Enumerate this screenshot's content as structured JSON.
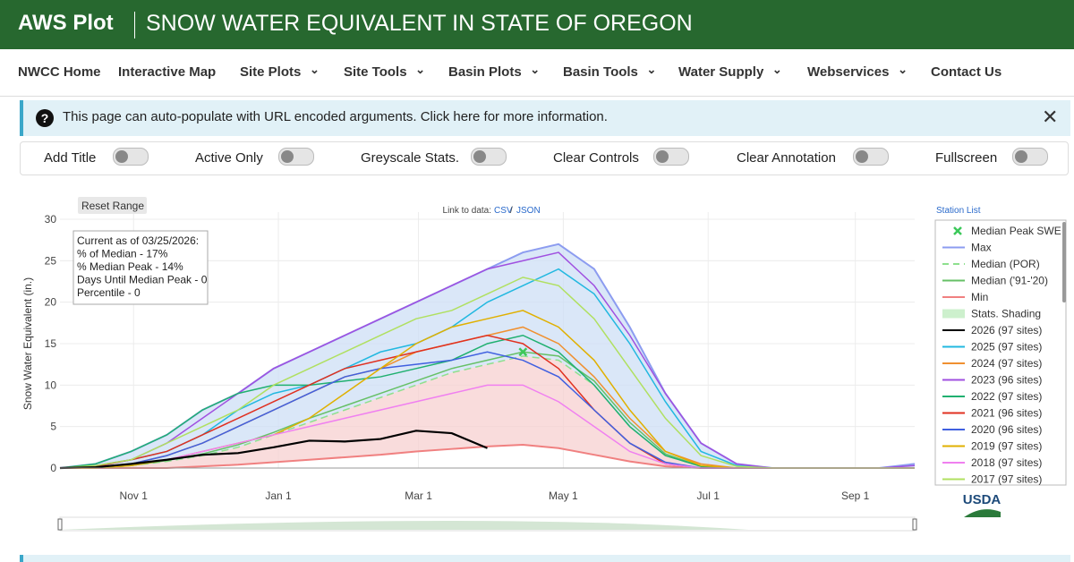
{
  "header": {
    "brand": "AWS Plot",
    "title": "SNOW WATER EQUIVALENT IN STATE OF OREGON"
  },
  "nav": [
    {
      "label": "NWCC Home",
      "dropdown": false
    },
    {
      "label": "Interactive Map",
      "dropdown": false
    },
    {
      "label": "Site Plots",
      "dropdown": true
    },
    {
      "label": "Site Tools",
      "dropdown": true
    },
    {
      "label": "Basin Plots",
      "dropdown": true
    },
    {
      "label": "Basin Tools",
      "dropdown": true
    },
    {
      "label": "Water Supply",
      "dropdown": true
    },
    {
      "label": "Webservices",
      "dropdown": true
    },
    {
      "label": "Contact Us",
      "dropdown": false
    }
  ],
  "banner": {
    "text": "This page can auto-populate with URL encoded arguments. Click here for more information."
  },
  "toggles": [
    "Add Title",
    "Active Only",
    "Greyscale Stats.",
    "Clear Controls",
    "Clear Annotation",
    "Fullscreen"
  ],
  "chart_data": {
    "type": "line",
    "y_label": "Snow Water Equivalent (in.)",
    "reset_label": "Reset Range",
    "link_prefix": "Link to data:",
    "link_csv": "CSV",
    "link_sep": "/",
    "link_json": "JSON",
    "station_list": "Station List",
    "logo": "USDA",
    "annotation": [
      "Current as of 03/25/2026:",
      "% of Median - 17%",
      "% Median Peak - 14%",
      "Days Until Median Peak - 0",
      "Percentile - 0"
    ],
    "x": [
      0,
      15,
      30,
      45,
      60,
      75,
      90,
      105,
      120,
      135,
      150,
      165,
      180,
      195,
      210,
      225,
      240,
      255,
      270,
      285,
      300,
      315,
      330,
      345,
      360
    ],
    "xlim": [
      0,
      360
    ],
    "xticks": [
      {
        "value": 31,
        "label": "Nov 1"
      },
      {
        "value": 92,
        "label": "Jan 1"
      },
      {
        "value": 151,
        "label": "Mar 1"
      },
      {
        "value": 212,
        "label": "May 1"
      },
      {
        "value": 273,
        "label": "Jul 1"
      },
      {
        "value": 335,
        "label": "Sep 1"
      }
    ],
    "ylim": [
      0,
      30
    ],
    "yticks": [
      0,
      5,
      10,
      15,
      20,
      25,
      30
    ],
    "grid": true,
    "shading": {
      "name": "Stats. Shading",
      "above": "#cddff5",
      "below": "#f7d0d0"
    },
    "median_peak": {
      "name": "Median Peak SWE",
      "x": 195,
      "value": 14,
      "color": "#3cc85a"
    },
    "series": [
      {
        "name": "Max",
        "color": "#8c9cf0",
        "values": [
          0,
          0.5,
          2,
          4,
          7,
          9,
          12,
          14,
          16,
          18,
          20,
          22,
          24,
          26,
          27,
          24,
          17,
          9,
          3,
          0.5,
          0,
          0,
          0,
          0,
          0.5
        ]
      },
      {
        "name": "Median (POR)",
        "color": "#8ee08e",
        "dash": true,
        "values": [
          0,
          0,
          0.3,
          0.8,
          1.5,
          2.5,
          4,
          5.5,
          7,
          8.5,
          10,
          11.5,
          12.5,
          13.5,
          13,
          10,
          5,
          1.5,
          0.2,
          0,
          0,
          0,
          0,
          0,
          0
        ]
      },
      {
        "name": "Median ('91-'20)",
        "color": "#66c066",
        "values": [
          0,
          0,
          0.3,
          0.9,
          1.7,
          2.8,
          4.3,
          6,
          7.5,
          9,
          10.5,
          12,
          13,
          14,
          13.5,
          10.5,
          5.5,
          1.7,
          0.2,
          0,
          0,
          0,
          0,
          0,
          0
        ]
      },
      {
        "name": "Min",
        "color": "#f08080",
        "values": [
          0,
          0,
          0,
          0,
          0.2,
          0.4,
          0.7,
          1,
          1.3,
          1.6,
          2,
          2.3,
          2.6,
          2.8,
          2.4,
          1.6,
          0.8,
          0.2,
          0,
          0,
          0,
          0,
          0,
          0,
          0
        ]
      },
      {
        "name": "2026 (97 sites)",
        "color": "#000000",
        "values": [
          0,
          0.1,
          0.5,
          1,
          1.6,
          1.8,
          2.5,
          3.3,
          3.2,
          3.5,
          4.5,
          4.2,
          2.4,
          null,
          null,
          null,
          null,
          null,
          null,
          null,
          null,
          null,
          null,
          null,
          null
        ]
      },
      {
        "name": "2025 (97 sites)",
        "color": "#22b8e0",
        "values": [
          0,
          0.2,
          1,
          2,
          4,
          7,
          9,
          10,
          12,
          14,
          15,
          17,
          20,
          22,
          24,
          21,
          15,
          8,
          2,
          0.3,
          0,
          0,
          0,
          0,
          0
        ]
      },
      {
        "name": "2024 (97 sites)",
        "color": "#f09030",
        "values": [
          0,
          0.1,
          0.5,
          1.5,
          3,
          5,
          7,
          9,
          11,
          12,
          14,
          15,
          16,
          17,
          15,
          11,
          6,
          2,
          0.5,
          0,
          0,
          0,
          0,
          0,
          0
        ]
      },
      {
        "name": "2023 (96 sites)",
        "color": "#a050e0",
        "values": [
          0,
          0.3,
          1,
          3,
          6,
          9,
          12,
          14,
          16,
          18,
          20,
          22,
          24,
          25,
          26,
          22,
          16,
          9,
          3,
          0.5,
          0,
          0,
          0,
          0,
          0.3
        ]
      },
      {
        "name": "2022 (97 sites)",
        "color": "#20b070",
        "values": [
          0,
          0.5,
          2,
          4,
          7,
          9,
          10,
          10,
          10.5,
          11,
          12,
          13,
          15,
          16,
          14,
          10,
          5,
          1.5,
          0.2,
          0,
          0,
          0,
          0,
          0,
          0
        ]
      },
      {
        "name": "2021 (96 sites)",
        "color": "#e03020",
        "values": [
          0,
          0.2,
          1,
          2,
          4,
          6,
          8,
          10,
          12,
          13,
          14,
          15,
          16,
          15,
          12,
          7,
          3,
          0.5,
          0,
          0,
          0,
          0,
          0,
          0,
          0
        ]
      },
      {
        "name": "2020 (96 sites)",
        "color": "#4060e0",
        "values": [
          0,
          0.1,
          0.5,
          1.5,
          3,
          5,
          7,
          9,
          11,
          12,
          12.5,
          13,
          14,
          13,
          11,
          7,
          3,
          0.7,
          0,
          0,
          0,
          0,
          0,
          0,
          0
        ]
      },
      {
        "name": "2019 (97 sites)",
        "color": "#e0b000",
        "values": [
          0,
          0,
          0.3,
          1,
          2,
          3,
          4,
          6,
          9,
          12,
          15,
          17,
          18,
          19,
          17,
          13,
          7,
          2,
          0.3,
          0,
          0,
          0,
          0,
          0,
          0
        ]
      },
      {
        "name": "2018 (97 sites)",
        "color": "#f080f0",
        "values": [
          0,
          0.1,
          0.5,
          1,
          2,
          3,
          4,
          5,
          6,
          7,
          8,
          9,
          10,
          10,
          8,
          5,
          2,
          0.5,
          0,
          0,
          0,
          0,
          0,
          0,
          0
        ]
      },
      {
        "name": "2017 (97 sites)",
        "color": "#b0e060",
        "values": [
          0,
          0.3,
          1,
          3,
          5,
          7,
          10,
          12,
          14,
          16,
          18,
          19,
          21,
          23,
          22,
          18,
          12,
          6,
          1.5,
          0.2,
          0,
          0,
          0,
          0,
          0
        ]
      }
    ]
  }
}
